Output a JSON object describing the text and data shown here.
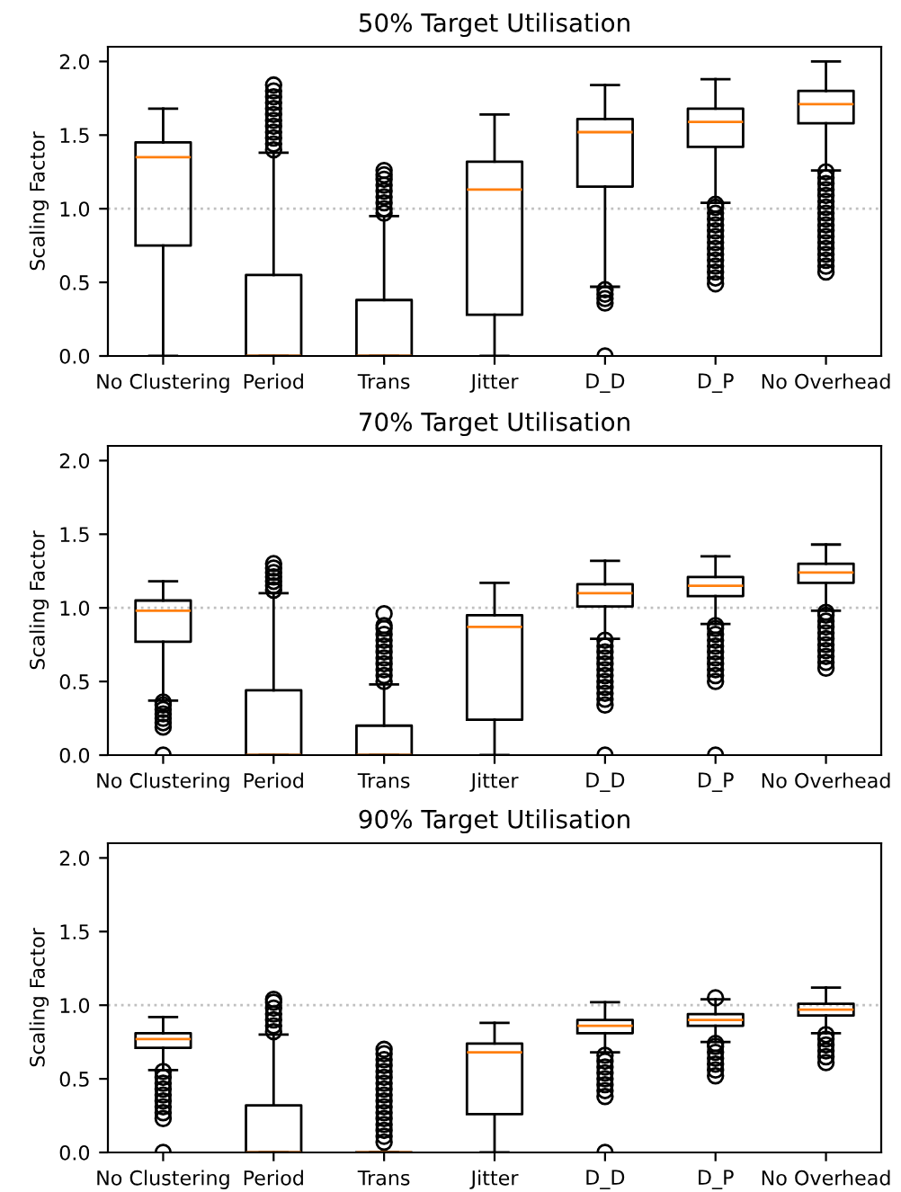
{
  "chart_data": [
    {
      "type": "box",
      "title": "50% Target Utilisation",
      "ylabel": "Scaling Factor",
      "categories": [
        "No Clustering",
        "Period",
        "Trans",
        "Jitter",
        "D_D",
        "D_P",
        "No Overhead"
      ],
      "ylim": [
        0,
        2.1
      ],
      "yticks": [
        {
          "value": 0,
          "label": "0.0"
        },
        {
          "value": 0.5,
          "label": "0.5"
        },
        {
          "value": 1,
          "label": "1.0"
        },
        {
          "value": 1.5,
          "label": "1.5"
        },
        {
          "value": 2,
          "label": "2.0"
        }
      ],
      "grid": false,
      "ref_lines": [
        {
          "axis": "y",
          "value": 1,
          "label": null,
          "color": "#c0c0c0",
          "line_style": "dotted"
        }
      ],
      "series": [
        {
          "color": "#000000",
          "boxes": [
            {
              "low": 0,
              "q1": 0.75,
              "median": 1.35,
              "q3": 1.45,
              "high": 1.68
            },
            {
              "low": 0,
              "q1": 0,
              "median": 0,
              "q3": 0.55,
              "high": 1.38,
              "outliers": [
                1.4,
                1.44,
                1.48,
                1.52,
                1.56,
                1.6,
                1.64,
                1.68,
                1.72,
                1.76,
                1.8,
                1.84
              ]
            },
            {
              "low": 0,
              "q1": 0,
              "median": 0,
              "q3": 0.38,
              "high": 0.95,
              "outliers": [
                0.97,
                1.0,
                1.04,
                1.08,
                1.12,
                1.16,
                1.2,
                1.23,
                1.26
              ]
            },
            {
              "low": 0,
              "q1": 0.28,
              "median": 1.13,
              "q3": 1.32,
              "high": 1.64
            },
            {
              "low": 0.47,
              "q1": 1.15,
              "median": 1.52,
              "q3": 1.61,
              "high": 1.84,
              "outliers": [
                0.0,
                0.36,
                0.39,
                0.42,
                0.45
              ]
            },
            {
              "low": 1.04,
              "q1": 1.42,
              "median": 1.59,
              "q3": 1.68,
              "high": 1.88,
              "outliers": [
                0.49,
                0.53,
                0.57,
                0.61,
                0.65,
                0.69,
                0.73,
                0.77,
                0.81,
                0.85,
                0.89,
                0.93,
                0.97,
                1.01,
                1.03
              ]
            },
            {
              "low": 1.26,
              "q1": 1.58,
              "median": 1.71,
              "q3": 1.8,
              "high": 2.0,
              "outliers": [
                0.57,
                0.61,
                0.65,
                0.69,
                0.73,
                0.77,
                0.81,
                0.85,
                0.89,
                0.93,
                0.97,
                1.01,
                1.05,
                1.09,
                1.13,
                1.17,
                1.21,
                1.25
              ]
            }
          ]
        }
      ]
    },
    {
      "type": "box",
      "title": "70% Target Utilisation",
      "ylabel": "Scaling Factor",
      "categories": [
        "No Clustering",
        "Period",
        "Trans",
        "Jitter",
        "D_D",
        "D_P",
        "No Overhead"
      ],
      "ylim": [
        0,
        2.1
      ],
      "yticks": [
        {
          "value": 0,
          "label": "0.0"
        },
        {
          "value": 0.5,
          "label": "0.5"
        },
        {
          "value": 1,
          "label": "1.0"
        },
        {
          "value": 1.5,
          "label": "1.5"
        },
        {
          "value": 2,
          "label": "2.0"
        }
      ],
      "grid": false,
      "ref_lines": [
        {
          "axis": "y",
          "value": 1,
          "label": null,
          "color": "#c0c0c0",
          "line_style": "dotted"
        }
      ],
      "series": [
        {
          "color": "#000000",
          "boxes": [
            {
              "low": 0.37,
              "q1": 0.77,
              "median": 0.98,
              "q3": 1.05,
              "high": 1.18,
              "outliers": [
                0.0,
                0.19,
                0.22,
                0.25,
                0.28,
                0.31,
                0.34,
                0.36
              ]
            },
            {
              "low": 0,
              "q1": 0,
              "median": 0,
              "q3": 0.44,
              "high": 1.1,
              "outliers": [
                1.12,
                1.15,
                1.18,
                1.21,
                1.24,
                1.27,
                1.3
              ]
            },
            {
              "low": 0,
              "q1": 0,
              "median": 0,
              "q3": 0.2,
              "high": 0.48,
              "outliers": [
                0.5,
                0.54,
                0.58,
                0.62,
                0.66,
                0.7,
                0.74,
                0.78,
                0.82,
                0.86,
                0.88,
                0.96
              ]
            },
            {
              "low": 0,
              "q1": 0.24,
              "median": 0.87,
              "q3": 0.95,
              "high": 1.17
            },
            {
              "low": 0.79,
              "q1": 1.01,
              "median": 1.1,
              "q3": 1.16,
              "high": 1.32,
              "outliers": [
                0.0,
                0.34,
                0.38,
                0.42,
                0.46,
                0.5,
                0.54,
                0.58,
                0.62,
                0.66,
                0.7,
                0.74,
                0.78
              ]
            },
            {
              "low": 0.89,
              "q1": 1.08,
              "median": 1.15,
              "q3": 1.21,
              "high": 1.35,
              "outliers": [
                0.0,
                0.5,
                0.54,
                0.58,
                0.62,
                0.66,
                0.7,
                0.74,
                0.78,
                0.82,
                0.86,
                0.88
              ]
            },
            {
              "low": 0.98,
              "q1": 1.17,
              "median": 1.24,
              "q3": 1.3,
              "high": 1.43,
              "outliers": [
                0.59,
                0.63,
                0.67,
                0.71,
                0.75,
                0.79,
                0.83,
                0.87,
                0.91,
                0.95,
                0.97
              ]
            }
          ]
        }
      ]
    },
    {
      "type": "box",
      "title": "90% Target Utilisation",
      "ylabel": "Scaling Factor",
      "categories": [
        "No Clustering",
        "Period",
        "Trans",
        "Jitter",
        "D_D",
        "D_P",
        "No Overhead"
      ],
      "ylim": [
        0,
        2.1
      ],
      "yticks": [
        {
          "value": 0,
          "label": "0.0"
        },
        {
          "value": 0.5,
          "label": "0.5"
        },
        {
          "value": 1,
          "label": "1.0"
        },
        {
          "value": 1.5,
          "label": "1.5"
        },
        {
          "value": 2,
          "label": "2.0"
        }
      ],
      "grid": false,
      "ref_lines": [
        {
          "axis": "y",
          "value": 1,
          "label": null,
          "color": "#c0c0c0",
          "line_style": "dotted"
        }
      ],
      "series": [
        {
          "color": "#000000",
          "boxes": [
            {
              "low": 0.56,
              "q1": 0.71,
              "median": 0.77,
              "q3": 0.81,
              "high": 0.92,
              "outliers": [
                0.0,
                0.23,
                0.27,
                0.31,
                0.35,
                0.39,
                0.43,
                0.47,
                0.51,
                0.55
              ]
            },
            {
              "low": 0,
              "q1": 0,
              "median": 0,
              "q3": 0.32,
              "high": 0.8,
              "outliers": [
                0.82,
                0.86,
                0.9,
                0.94,
                0.98,
                1.02,
                1.04
              ]
            },
            {
              "low": 0,
              "q1": 0,
              "median": 0,
              "q3": 0,
              "high": 0,
              "outliers": [
                0.07,
                0.11,
                0.15,
                0.19,
                0.23,
                0.27,
                0.31,
                0.35,
                0.39,
                0.43,
                0.47,
                0.51,
                0.55,
                0.59,
                0.63,
                0.67,
                0.7
              ]
            },
            {
              "low": 0,
              "q1": 0.26,
              "median": 0.68,
              "q3": 0.74,
              "high": 0.88
            },
            {
              "low": 0.68,
              "q1": 0.81,
              "median": 0.86,
              "q3": 0.9,
              "high": 1.02,
              "outliers": [
                0.0,
                0.38,
                0.42,
                0.46,
                0.5,
                0.54,
                0.58,
                0.62,
                0.66
              ]
            },
            {
              "low": 0.75,
              "q1": 0.86,
              "median": 0.9,
              "q3": 0.94,
              "high": 1.04,
              "outliers": [
                0.52,
                0.56,
                0.6,
                0.64,
                0.68,
                0.72,
                0.74,
                1.05
              ]
            },
            {
              "low": 0.81,
              "q1": 0.93,
              "median": 0.97,
              "q3": 1.01,
              "high": 1.12,
              "outliers": [
                0.61,
                0.65,
                0.69,
                0.73,
                0.77,
                0.8
              ]
            }
          ]
        }
      ]
    }
  ]
}
